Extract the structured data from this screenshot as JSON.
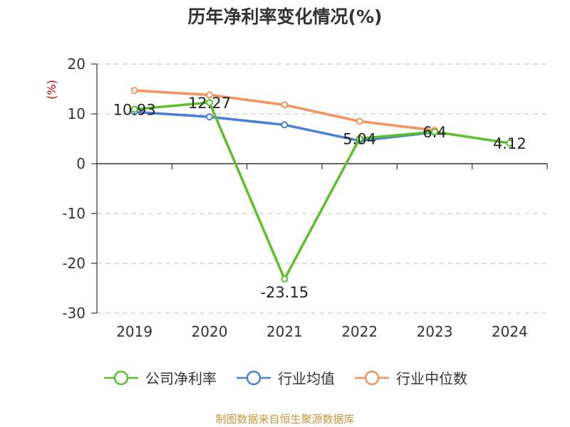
{
  "chart_data": {
    "type": "line",
    "title": "历年净利率变化情况(%)",
    "ylabel": "(%)",
    "xlabel": "",
    "categories": [
      "2019",
      "2020",
      "2021",
      "2022",
      "2023",
      "2024"
    ],
    "ylim": [
      -30,
      20
    ],
    "yticks": [
      20,
      10,
      0,
      -10,
      -20,
      -30
    ],
    "grid": true,
    "legend_position": "bottom",
    "series": [
      {
        "name": "公司净利率",
        "color": "#5ac02b",
        "values": [
          10.93,
          12.27,
          -23.15,
          5.04,
          6.4,
          4.12
        ],
        "data_labels": [
          "10.93",
          "12.27",
          "-23.15",
          "5.04",
          "6.4",
          "4.12"
        ]
      },
      {
        "name": "行业均值",
        "color": "#4a7fd8",
        "values": [
          10.4,
          9.4,
          7.8,
          4.6,
          6.3,
          null
        ]
      },
      {
        "name": "行业中位数",
        "color": "#f4915c",
        "values": [
          14.7,
          13.8,
          11.8,
          8.5,
          6.7,
          null
        ]
      }
    ]
  },
  "footer": {
    "source": "制图数据来自恒生聚源数据库"
  }
}
